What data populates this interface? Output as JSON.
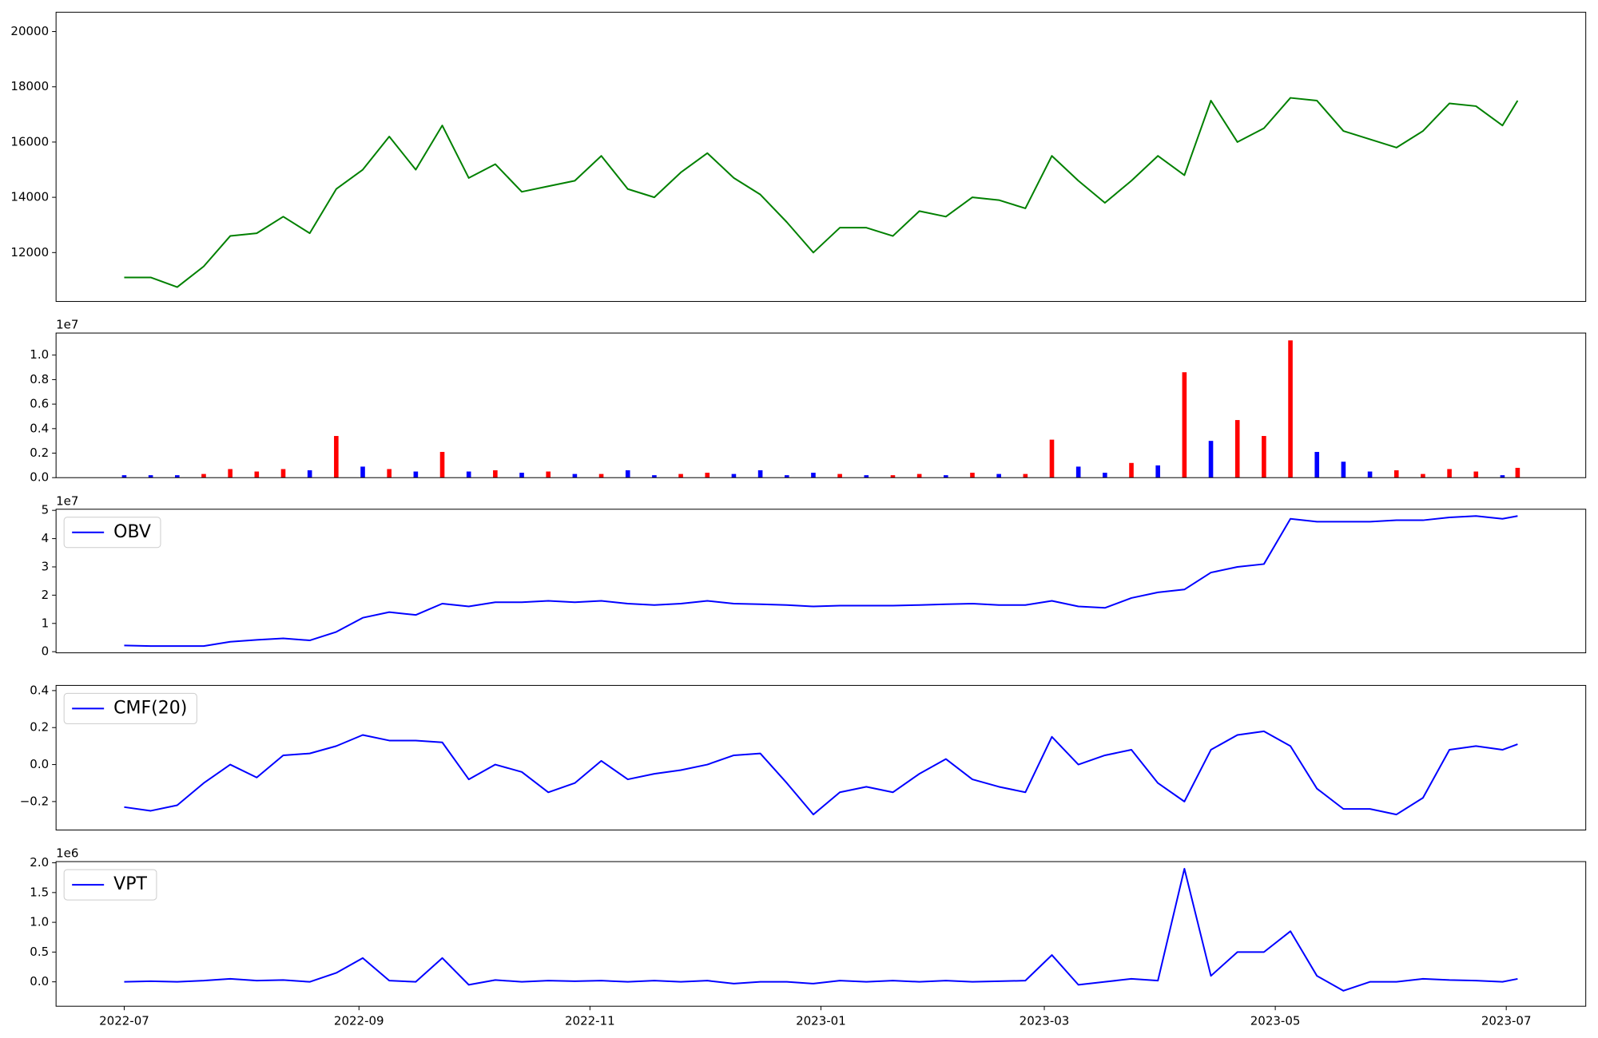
{
  "chart_data": [
    {
      "type": "line",
      "color": "#008000",
      "x": [
        "2022-07-01",
        "2022-07-08",
        "2022-07-15",
        "2022-07-22",
        "2022-07-29",
        "2022-08-05",
        "2022-08-12",
        "2022-08-19",
        "2022-08-26",
        "2022-09-02",
        "2022-09-09",
        "2022-09-16",
        "2022-09-23",
        "2022-09-30",
        "2022-10-07",
        "2022-10-14",
        "2022-10-21",
        "2022-10-28",
        "2022-11-04",
        "2022-11-11",
        "2022-11-18",
        "2022-11-25",
        "2022-12-02",
        "2022-12-09",
        "2022-12-16",
        "2022-12-23",
        "2022-12-30",
        "2023-01-06",
        "2023-01-13",
        "2023-01-20",
        "2023-01-27",
        "2023-02-03",
        "2023-02-10",
        "2023-02-17",
        "2023-02-24",
        "2023-03-03",
        "2023-03-10",
        "2023-03-17",
        "2023-03-24",
        "2023-03-31",
        "2023-04-07",
        "2023-04-14",
        "2023-04-21",
        "2023-04-28",
        "2023-05-05",
        "2023-05-12",
        "2023-05-19",
        "2023-05-26",
        "2023-06-02",
        "2023-06-09",
        "2023-06-16",
        "2023-06-23",
        "2023-06-30",
        "2023-07-04"
      ],
      "values": [
        11100,
        11100,
        10750,
        11500,
        12600,
        12700,
        13300,
        12700,
        14300,
        15000,
        16200,
        15000,
        16600,
        14700,
        15200,
        14200,
        14400,
        14600,
        15500,
        14300,
        14000,
        14900,
        15600,
        14700,
        14100,
        13100,
        12000,
        12900,
        12900,
        12600,
        13500,
        13300,
        14000,
        13900,
        13600,
        15500,
        14600,
        13800,
        14600,
        15500,
        14800,
        17500,
        16000,
        16500,
        17600,
        17500,
        16400,
        16100,
        15800,
        16400,
        17400,
        17300,
        16600,
        17500
      ],
      "xlim": [
        "2022-06-13",
        "2023-07-22"
      ],
      "ylim": [
        10230,
        20700
      ],
      "yticks": [
        12000,
        14000,
        16000,
        18000,
        20000
      ]
    },
    {
      "type": "bar",
      "y_offset_label": "1e7",
      "x": [
        "2022-07-01",
        "2022-07-08",
        "2022-07-15",
        "2022-07-22",
        "2022-07-29",
        "2022-08-05",
        "2022-08-12",
        "2022-08-19",
        "2022-08-26",
        "2022-09-02",
        "2022-09-09",
        "2022-09-16",
        "2022-09-23",
        "2022-09-30",
        "2022-10-07",
        "2022-10-14",
        "2022-10-21",
        "2022-10-28",
        "2022-11-04",
        "2022-11-11",
        "2022-11-18",
        "2022-11-25",
        "2022-12-02",
        "2022-12-09",
        "2022-12-16",
        "2022-12-23",
        "2022-12-30",
        "2023-01-06",
        "2023-01-13",
        "2023-01-20",
        "2023-01-27",
        "2023-02-03",
        "2023-02-10",
        "2023-02-17",
        "2023-02-24",
        "2023-03-03",
        "2023-03-10",
        "2023-03-17",
        "2023-03-24",
        "2023-03-31",
        "2023-04-07",
        "2023-04-14",
        "2023-04-21",
        "2023-04-28",
        "2023-05-05",
        "2023-05-12",
        "2023-05-19",
        "2023-05-26",
        "2023-06-02",
        "2023-06-09",
        "2023-06-16",
        "2023-06-23",
        "2023-06-30",
        "2023-07-04"
      ],
      "values": [
        0.02,
        0.02,
        0.02,
        0.03,
        0.07,
        0.05,
        0.07,
        0.06,
        0.34,
        0.09,
        0.07,
        0.05,
        0.21,
        0.05,
        0.06,
        0.04,
        0.05,
        0.03,
        0.03,
        0.06,
        0.02,
        0.03,
        0.04,
        0.03,
        0.06,
        0.02,
        0.04,
        0.03,
        0.02,
        0.02,
        0.03,
        0.02,
        0.04,
        0.03,
        0.03,
        0.31,
        0.09,
        0.04,
        0.12,
        0.1,
        0.86,
        0.3,
        0.47,
        0.34,
        1.12,
        0.21,
        0.13,
        0.05,
        0.06,
        0.03,
        0.07,
        0.05,
        0.02,
        0.08
      ],
      "colors": [
        "#0000ff",
        "#0000ff",
        "#0000ff",
        "#ff0000",
        "#ff0000",
        "#ff0000",
        "#ff0000",
        "#0000ff",
        "#ff0000",
        "#0000ff",
        "#ff0000",
        "#0000ff",
        "#ff0000",
        "#0000ff",
        "#ff0000",
        "#0000ff",
        "#ff0000",
        "#0000ff",
        "#ff0000",
        "#0000ff",
        "#0000ff",
        "#ff0000",
        "#ff0000",
        "#0000ff",
        "#0000ff",
        "#0000ff",
        "#0000ff",
        "#ff0000",
        "#0000ff",
        "#ff0000",
        "#ff0000",
        "#0000ff",
        "#ff0000",
        "#0000ff",
        "#ff0000",
        "#ff0000",
        "#0000ff",
        "#0000ff",
        "#ff0000",
        "#0000ff",
        "#ff0000",
        "#0000ff",
        "#ff0000",
        "#ff0000",
        "#ff0000",
        "#0000ff",
        "#0000ff",
        "#0000ff",
        "#ff0000",
        "#ff0000",
        "#ff0000",
        "#ff0000",
        "#0000ff",
        "#ff0000"
      ],
      "xlim": [
        "2022-06-13",
        "2023-07-22"
      ],
      "ylim": [
        0,
        1.18
      ],
      "yticks": [
        {
          "value": 0,
          "label": "0.0"
        },
        0.2,
        0.4,
        0.6,
        0.8,
        {
          "value": 1,
          "label": "1.0"
        }
      ]
    },
    {
      "type": "line",
      "y_offset_label": "1e7",
      "legend": "upper left",
      "x": [
        "2022-07-01",
        "2022-07-08",
        "2022-07-15",
        "2022-07-22",
        "2022-07-29",
        "2022-08-05",
        "2022-08-12",
        "2022-08-19",
        "2022-08-26",
        "2022-09-02",
        "2022-09-09",
        "2022-09-16",
        "2022-09-23",
        "2022-09-30",
        "2022-10-07",
        "2022-10-14",
        "2022-10-21",
        "2022-10-28",
        "2022-11-04",
        "2022-11-11",
        "2022-11-18",
        "2022-11-25",
        "2022-12-02",
        "2022-12-09",
        "2022-12-16",
        "2022-12-23",
        "2022-12-30",
        "2023-01-06",
        "2023-01-13",
        "2023-01-20",
        "2023-01-27",
        "2023-02-03",
        "2023-02-10",
        "2023-02-17",
        "2023-02-24",
        "2023-03-03",
        "2023-03-10",
        "2023-03-17",
        "2023-03-24",
        "2023-03-31",
        "2023-04-07",
        "2023-04-14",
        "2023-04-21",
        "2023-04-28",
        "2023-05-05",
        "2023-05-12",
        "2023-05-19",
        "2023-05-26",
        "2023-06-02",
        "2023-06-09",
        "2023-06-16",
        "2023-06-23",
        "2023-06-30",
        "2023-07-04"
      ],
      "series": [
        {
          "name": "OBV",
          "color": "#0000ff",
          "values": [
            0.22,
            0.2,
            0.2,
            0.2,
            0.35,
            0.42,
            0.47,
            0.4,
            0.7,
            1.2,
            1.4,
            1.3,
            1.7,
            1.6,
            1.75,
            1.75,
            1.8,
            1.75,
            1.8,
            1.7,
            1.65,
            1.7,
            1.8,
            1.7,
            1.68,
            1.65,
            1.6,
            1.63,
            1.63,
            1.63,
            1.65,
            1.68,
            1.7,
            1.65,
            1.65,
            1.8,
            1.6,
            1.55,
            1.9,
            2.1,
            2.2,
            2.8,
            3.0,
            3.1,
            4.7,
            4.6,
            4.6,
            4.6,
            4.65,
            4.65,
            4.75,
            4.8,
            4.7,
            4.8
          ]
        }
      ],
      "xlim": [
        "2022-06-13",
        "2023-07-22"
      ],
      "ylim": [
        -0.04,
        5.04
      ],
      "yticks": [
        0,
        1,
        2,
        3,
        4,
        5
      ]
    },
    {
      "type": "line",
      "legend": "upper left",
      "x": [
        "2022-07-01",
        "2022-07-08",
        "2022-07-15",
        "2022-07-22",
        "2022-07-29",
        "2022-08-05",
        "2022-08-12",
        "2022-08-19",
        "2022-08-26",
        "2022-09-02",
        "2022-09-09",
        "2022-09-16",
        "2022-09-23",
        "2022-09-30",
        "2022-10-07",
        "2022-10-14",
        "2022-10-21",
        "2022-10-28",
        "2022-11-04",
        "2022-11-11",
        "2022-11-18",
        "2022-11-25",
        "2022-12-02",
        "2022-12-09",
        "2022-12-16",
        "2022-12-23",
        "2022-12-30",
        "2023-01-06",
        "2023-01-13",
        "2023-01-20",
        "2023-01-27",
        "2023-02-03",
        "2023-02-10",
        "2023-02-17",
        "2023-02-24",
        "2023-03-03",
        "2023-03-10",
        "2023-03-17",
        "2023-03-24",
        "2023-03-31",
        "2023-04-07",
        "2023-04-14",
        "2023-04-21",
        "2023-04-28",
        "2023-05-05",
        "2023-05-12",
        "2023-05-19",
        "2023-05-26",
        "2023-06-02",
        "2023-06-09",
        "2023-06-16",
        "2023-06-23",
        "2023-06-30",
        "2023-07-04"
      ],
      "series": [
        {
          "name": "CMF(20)",
          "color": "#0000ff",
          "values": [
            -0.23,
            -0.25,
            -0.22,
            -0.1,
            0.0,
            -0.07,
            0.05,
            0.06,
            0.1,
            0.16,
            0.13,
            0.13,
            0.12,
            -0.08,
            0.0,
            -0.04,
            -0.15,
            -0.1,
            0.02,
            -0.08,
            -0.05,
            -0.03,
            0.0,
            0.05,
            0.06,
            -0.1,
            -0.27,
            -0.15,
            -0.12,
            -0.15,
            -0.05,
            0.03,
            -0.08,
            -0.12,
            -0.15,
            0.15,
            0.0,
            0.05,
            0.08,
            -0.1,
            -0.2,
            0.08,
            0.16,
            0.18,
            0.1,
            -0.13,
            -0.24,
            -0.24,
            -0.27,
            -0.18,
            0.08,
            0.1,
            0.08,
            0.11
          ]
        }
      ],
      "xlim": [
        "2022-06-13",
        "2023-07-22"
      ],
      "ylim": [
        -0.354,
        0.428
      ],
      "yticks": [
        {
          "value": -0.2,
          "label": "−0.2"
        },
        {
          "value": 0,
          "label": "0.0"
        },
        0.2,
        0.4
      ]
    },
    {
      "type": "line",
      "y_offset_label": "1e6",
      "legend": "upper left",
      "x": [
        "2022-07-01",
        "2022-07-08",
        "2022-07-15",
        "2022-07-22",
        "2022-07-29",
        "2022-08-05",
        "2022-08-12",
        "2022-08-19",
        "2022-08-26",
        "2022-09-02",
        "2022-09-09",
        "2022-09-16",
        "2022-09-23",
        "2022-09-30",
        "2022-10-07",
        "2022-10-14",
        "2022-10-21",
        "2022-10-28",
        "2022-11-04",
        "2022-11-11",
        "2022-11-18",
        "2022-11-25",
        "2022-12-02",
        "2022-12-09",
        "2022-12-16",
        "2022-12-23",
        "2022-12-30",
        "2023-01-06",
        "2023-01-13",
        "2023-01-20",
        "2023-01-27",
        "2023-02-03",
        "2023-02-10",
        "2023-02-17",
        "2023-02-24",
        "2023-03-03",
        "2023-03-10",
        "2023-03-17",
        "2023-03-24",
        "2023-03-31",
        "2023-04-07",
        "2023-04-14",
        "2023-04-21",
        "2023-04-28",
        "2023-05-05",
        "2023-05-12",
        "2023-05-19",
        "2023-05-26",
        "2023-06-02",
        "2023-06-09",
        "2023-06-16",
        "2023-06-23",
        "2023-06-30",
        "2023-07-04"
      ],
      "series": [
        {
          "name": "VPT",
          "color": "#0000ff",
          "values": [
            0,
            0.01,
            0,
            0.02,
            0.05,
            0.02,
            0.03,
            0.0,
            0.15,
            0.4,
            0.02,
            0.0,
            0.4,
            -0.05,
            0.03,
            0.0,
            0.02,
            0.01,
            0.02,
            0.0,
            0.02,
            0.0,
            0.02,
            -0.03,
            0.0,
            0.0,
            -0.03,
            0.02,
            0.0,
            0.02,
            0.0,
            0.02,
            0.0,
            0.01,
            0.02,
            0.45,
            -0.05,
            0.0,
            0.05,
            0.02,
            1.9,
            0.1,
            0.5,
            0.5,
            0.85,
            0.1,
            -0.15,
            0.0,
            0.0,
            0.05,
            0.03,
            0.02,
            0.0,
            0.05
          ]
        }
      ],
      "xlim": [
        "2022-06-13",
        "2023-07-22"
      ],
      "ylim": [
        -0.41,
        2.02
      ],
      "yticks": [
        {
          "value": 0,
          "label": "0.0"
        },
        0.5,
        {
          "value": 1,
          "label": "1.0"
        },
        1.5,
        {
          "value": 2,
          "label": "2.0"
        }
      ],
      "xticks": [
        {
          "value": "2022-07-01",
          "label": "2022-07"
        },
        {
          "value": "2022-09-01",
          "label": "2022-09"
        },
        {
          "value": "2022-11-01",
          "label": "2022-11"
        },
        {
          "value": "2023-01-01",
          "label": "2023-01"
        },
        {
          "value": "2023-03-01",
          "label": "2023-03"
        },
        {
          "value": "2023-05-01",
          "label": "2023-05"
        },
        {
          "value": "2023-07-01",
          "label": "2023-07"
        }
      ]
    }
  ]
}
